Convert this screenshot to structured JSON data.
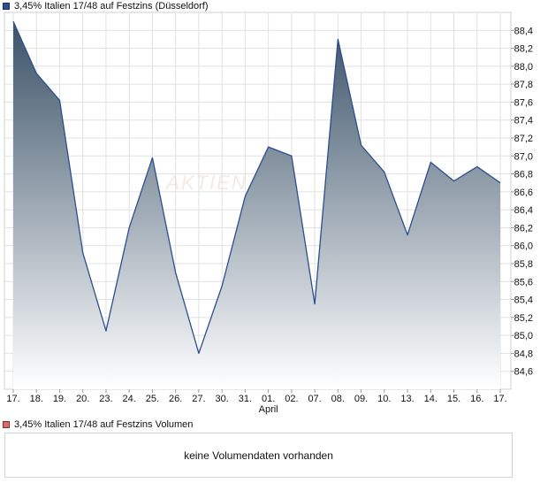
{
  "price_legend": {
    "label": "3,45% Italien 17/48 auf Festzins (Düsseldorf)",
    "color": "#2b4f8f"
  },
  "volume_legend": {
    "label": "3,45% Italien 17/48 auf Festzins Volumen",
    "color": "#d96b6b"
  },
  "watermark": "AKTIEN",
  "volume_panel": {
    "message": "keine Volumendaten vorhanden"
  },
  "chart_data": {
    "type": "area",
    "x": [
      "17.",
      "18.",
      "19.",
      "20.",
      "23.",
      "24.",
      "25.",
      "26.",
      "27.",
      "30.",
      "31.",
      "01.",
      "02.",
      "07.",
      "08.",
      "09.",
      "10.",
      "13.",
      "14.",
      "15.",
      "16.",
      "17."
    ],
    "month_label": {
      "text": "April",
      "under_index": 11
    },
    "y_ticks": [
      "84,6",
      "84,8",
      "85,0",
      "85,2",
      "85,4",
      "85,6",
      "85,8",
      "86,0",
      "86,2",
      "86,4",
      "86,6",
      "86,8",
      "87,0",
      "87,2",
      "87,4",
      "87,6",
      "87,8",
      "88,0",
      "88,2",
      "88,4"
    ],
    "ylim": [
      84.4,
      88.6
    ],
    "series": [
      {
        "values": [
          88.5,
          87.92,
          87.62,
          85.92,
          85.05,
          86.2,
          86.98,
          85.7,
          84.8,
          85.55,
          86.55,
          87.1,
          87.0,
          85.35,
          88.3,
          87.12,
          86.82,
          86.12,
          86.93,
          86.72,
          86.88,
          86.7
        ]
      }
    ],
    "line_color": "#2b4f8f",
    "fill_top_color": "#3b5268",
    "fill_bottom_color": "#ffffff",
    "grid": true
  }
}
